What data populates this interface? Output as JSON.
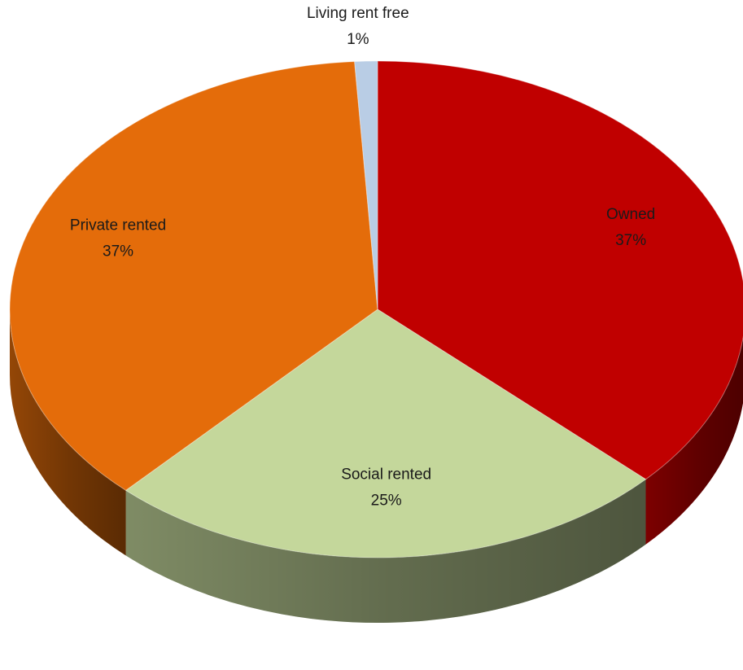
{
  "chart_data": {
    "type": "pie",
    "title": "",
    "style": "3d",
    "slices": [
      {
        "label": "Owned",
        "value": 37,
        "value_label": "37%",
        "color": "#C00000"
      },
      {
        "label": "Social rented",
        "value": 25,
        "value_label": "25%",
        "color": "#C4D79B"
      },
      {
        "label": "Private rented",
        "value": 37,
        "value_label": "37%",
        "color": "#E46C0A"
      },
      {
        "label": "Living rent free",
        "value": 1,
        "value_label": "1%",
        "color": "#B9CDE5"
      }
    ],
    "legend": "none",
    "data_labels": "category and percentage"
  }
}
